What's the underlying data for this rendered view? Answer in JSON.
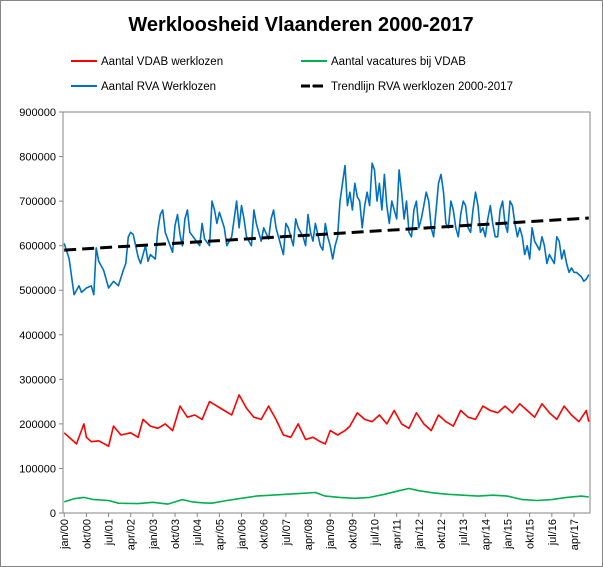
{
  "chart_data": {
    "type": "line",
    "title": "Werkloosheid Vlaanderen 2000-2017",
    "xlabel": "",
    "ylabel": "",
    "ylim": [
      0,
      900000
    ],
    "yticks": [
      0,
      100000,
      200000,
      300000,
      400000,
      500000,
      600000,
      700000,
      800000,
      900000
    ],
    "grid": false,
    "legend_position": "top",
    "x_start": "jan/00",
    "x_end": "dec/17",
    "xtick_labels": [
      "jan/00",
      "okt/00",
      "jul/01",
      "apr/02",
      "jan/03",
      "okt/03",
      "jul/04",
      "apr/05",
      "jan/06",
      "okt/06",
      "jul/07",
      "apr/08",
      "jan/09",
      "okt/09",
      "jul/10",
      "apr/11",
      "jan/12",
      "okt/12",
      "jul/13",
      "apr/14",
      "jan/15",
      "okt/15",
      "jul/16",
      "apr/17"
    ],
    "series": [
      {
        "name": "Aantal VDAB werklozen",
        "color": "#ff0000",
        "style": "solid",
        "anchors": [
          [
            0,
            180000
          ],
          [
            3,
            165000
          ],
          [
            5,
            155000
          ],
          [
            8,
            200000
          ],
          [
            9,
            170000
          ],
          [
            11,
            160000
          ],
          [
            14,
            162000
          ],
          [
            18,
            150000
          ],
          [
            20,
            195000
          ],
          [
            23,
            175000
          ],
          [
            27,
            180000
          ],
          [
            30,
            170000
          ],
          [
            32,
            210000
          ],
          [
            35,
            195000
          ],
          [
            38,
            190000
          ],
          [
            41,
            200000
          ],
          [
            44,
            185000
          ],
          [
            47,
            240000
          ],
          [
            50,
            215000
          ],
          [
            53,
            220000
          ],
          [
            56,
            210000
          ],
          [
            59,
            250000
          ],
          [
            62,
            240000
          ],
          [
            65,
            230000
          ],
          [
            68,
            220000
          ],
          [
            71,
            265000
          ],
          [
            74,
            235000
          ],
          [
            77,
            215000
          ],
          [
            80,
            210000
          ],
          [
            83,
            240000
          ],
          [
            86,
            210000
          ],
          [
            89,
            175000
          ],
          [
            92,
            170000
          ],
          [
            95,
            200000
          ],
          [
            98,
            165000
          ],
          [
            101,
            170000
          ],
          [
            104,
            160000
          ],
          [
            106,
            155000
          ],
          [
            108,
            185000
          ],
          [
            111,
            175000
          ],
          [
            114,
            185000
          ],
          [
            116,
            195000
          ],
          [
            119,
            225000
          ],
          [
            122,
            210000
          ],
          [
            125,
            205000
          ],
          [
            128,
            220000
          ],
          [
            131,
            200000
          ],
          [
            134,
            230000
          ],
          [
            137,
            200000
          ],
          [
            140,
            190000
          ],
          [
            143,
            225000
          ],
          [
            146,
            200000
          ],
          [
            149,
            185000
          ],
          [
            152,
            220000
          ],
          [
            155,
            205000
          ],
          [
            158,
            195000
          ],
          [
            161,
            230000
          ],
          [
            164,
            215000
          ],
          [
            167,
            210000
          ],
          [
            170,
            240000
          ],
          [
            173,
            230000
          ],
          [
            176,
            225000
          ],
          [
            179,
            240000
          ],
          [
            182,
            225000
          ],
          [
            185,
            245000
          ],
          [
            188,
            230000
          ],
          [
            191,
            215000
          ],
          [
            194,
            245000
          ],
          [
            197,
            225000
          ],
          [
            200,
            210000
          ],
          [
            203,
            240000
          ],
          [
            206,
            220000
          ],
          [
            209,
            205000
          ],
          [
            212,
            230000
          ],
          [
            213,
            205000
          ]
        ]
      },
      {
        "name": "Aantal vacatures bij VDAB",
        "color": "#00b050",
        "style": "solid",
        "anchors": [
          [
            0,
            25000
          ],
          [
            4,
            32000
          ],
          [
            8,
            35000
          ],
          [
            12,
            30000
          ],
          [
            18,
            28000
          ],
          [
            22,
            22000
          ],
          [
            30,
            21000
          ],
          [
            36,
            24000
          ],
          [
            42,
            20000
          ],
          [
            48,
            30000
          ],
          [
            52,
            25000
          ],
          [
            56,
            23000
          ],
          [
            60,
            22000
          ],
          [
            66,
            28000
          ],
          [
            72,
            33000
          ],
          [
            78,
            38000
          ],
          [
            84,
            40000
          ],
          [
            90,
            42000
          ],
          [
            96,
            44000
          ],
          [
            102,
            46000
          ],
          [
            106,
            38000
          ],
          [
            112,
            35000
          ],
          [
            118,
            33000
          ],
          [
            124,
            35000
          ],
          [
            130,
            42000
          ],
          [
            136,
            50000
          ],
          [
            140,
            55000
          ],
          [
            144,
            50000
          ],
          [
            150,
            45000
          ],
          [
            156,
            42000
          ],
          [
            162,
            40000
          ],
          [
            168,
            38000
          ],
          [
            174,
            40000
          ],
          [
            180,
            38000
          ],
          [
            186,
            30000
          ],
          [
            192,
            28000
          ],
          [
            198,
            30000
          ],
          [
            204,
            35000
          ],
          [
            210,
            38000
          ],
          [
            213,
            36000
          ]
        ]
      },
      {
        "name": "Aantal RVA Werklozen",
        "color": "#0070c0",
        "style": "solid",
        "anchors": [
          [
            0,
            605000
          ],
          [
            2,
            570000
          ],
          [
            3,
            530000
          ],
          [
            4,
            490000
          ],
          [
            6,
            510000
          ],
          [
            7,
            495000
          ],
          [
            9,
            505000
          ],
          [
            11,
            510000
          ],
          [
            12,
            490000
          ],
          [
            13,
            595000
          ],
          [
            14,
            565000
          ],
          [
            16,
            545000
          ],
          [
            18,
            505000
          ],
          [
            20,
            520000
          ],
          [
            22,
            510000
          ],
          [
            24,
            545000
          ],
          [
            25,
            560000
          ],
          [
            26,
            620000
          ],
          [
            27,
            630000
          ],
          [
            28,
            625000
          ],
          [
            30,
            575000
          ],
          [
            31,
            560000
          ],
          [
            33,
            600000
          ],
          [
            34,
            565000
          ],
          [
            35,
            580000
          ],
          [
            37,
            570000
          ],
          [
            38,
            635000
          ],
          [
            39,
            670000
          ],
          [
            40,
            680000
          ],
          [
            41,
            630000
          ],
          [
            43,
            600000
          ],
          [
            44,
            585000
          ],
          [
            45,
            645000
          ],
          [
            46,
            670000
          ],
          [
            47,
            625000
          ],
          [
            48,
            600000
          ],
          [
            49,
            660000
          ],
          [
            50,
            680000
          ],
          [
            51,
            630000
          ],
          [
            53,
            615000
          ],
          [
            55,
            600000
          ],
          [
            56,
            650000
          ],
          [
            57,
            615000
          ],
          [
            59,
            600000
          ],
          [
            60,
            700000
          ],
          [
            61,
            680000
          ],
          [
            62,
            650000
          ],
          [
            63,
            675000
          ],
          [
            65,
            640000
          ],
          [
            66,
            600000
          ],
          [
            68,
            620000
          ],
          [
            70,
            700000
          ],
          [
            71,
            640000
          ],
          [
            72,
            690000
          ],
          [
            73,
            660000
          ],
          [
            74,
            620000
          ],
          [
            76,
            600000
          ],
          [
            77,
            680000
          ],
          [
            78,
            650000
          ],
          [
            80,
            610000
          ],
          [
            81,
            640000
          ],
          [
            83,
            615000
          ],
          [
            84,
            660000
          ],
          [
            85,
            680000
          ],
          [
            86,
            640000
          ],
          [
            88,
            600000
          ],
          [
            89,
            580000
          ],
          [
            90,
            650000
          ],
          [
            91,
            640000
          ],
          [
            93,
            600000
          ],
          [
            94,
            660000
          ],
          [
            95,
            640000
          ],
          [
            97,
            620000
          ],
          [
            98,
            600000
          ],
          [
            99,
            670000
          ],
          [
            100,
            630000
          ],
          [
            101,
            610000
          ],
          [
            102,
            650000
          ],
          [
            104,
            600000
          ],
          [
            105,
            590000
          ],
          [
            106,
            650000
          ],
          [
            107,
            620000
          ],
          [
            108,
            600000
          ],
          [
            109,
            570000
          ],
          [
            110,
            600000
          ],
          [
            111,
            620000
          ],
          [
            112,
            700000
          ],
          [
            113,
            740000
          ],
          [
            114,
            780000
          ],
          [
            115,
            690000
          ],
          [
            116,
            720000
          ],
          [
            117,
            680000
          ],
          [
            118,
            740000
          ],
          [
            119,
            710000
          ],
          [
            120,
            700000
          ],
          [
            121,
            640000
          ],
          [
            122,
            690000
          ],
          [
            123,
            720000
          ],
          [
            124,
            690000
          ],
          [
            125,
            785000
          ],
          [
            126,
            770000
          ],
          [
            127,
            700000
          ],
          [
            128,
            740000
          ],
          [
            129,
            680000
          ],
          [
            130,
            760000
          ],
          [
            131,
            690000
          ],
          [
            132,
            650000
          ],
          [
            133,
            700000
          ],
          [
            134,
            680000
          ],
          [
            135,
            660000
          ],
          [
            136,
            770000
          ],
          [
            137,
            720000
          ],
          [
            138,
            660000
          ],
          [
            139,
            700000
          ],
          [
            140,
            630000
          ],
          [
            141,
            620000
          ],
          [
            142,
            680000
          ],
          [
            143,
            700000
          ],
          [
            144,
            640000
          ],
          [
            145,
            660000
          ],
          [
            146,
            690000
          ],
          [
            147,
            720000
          ],
          [
            148,
            700000
          ],
          [
            149,
            640000
          ],
          [
            150,
            620000
          ],
          [
            151,
            680000
          ],
          [
            152,
            740000
          ],
          [
            153,
            760000
          ],
          [
            154,
            720000
          ],
          [
            155,
            650000
          ],
          [
            156,
            640000
          ],
          [
            157,
            700000
          ],
          [
            158,
            680000
          ],
          [
            159,
            640000
          ],
          [
            160,
            620000
          ],
          [
            161,
            670000
          ],
          [
            162,
            700000
          ],
          [
            163,
            690000
          ],
          [
            164,
            640000
          ],
          [
            165,
            630000
          ],
          [
            166,
            680000
          ],
          [
            167,
            720000
          ],
          [
            168,
            690000
          ],
          [
            169,
            630000
          ],
          [
            170,
            640000
          ],
          [
            171,
            620000
          ],
          [
            172,
            660000
          ],
          [
            173,
            690000
          ],
          [
            174,
            650000
          ],
          [
            175,
            620000
          ],
          [
            176,
            620000
          ],
          [
            177,
            680000
          ],
          [
            178,
            700000
          ],
          [
            179,
            650000
          ],
          [
            180,
            630000
          ],
          [
            181,
            700000
          ],
          [
            182,
            690000
          ],
          [
            183,
            650000
          ],
          [
            184,
            620000
          ],
          [
            185,
            640000
          ],
          [
            186,
            620000
          ],
          [
            187,
            580000
          ],
          [
            188,
            600000
          ],
          [
            189,
            570000
          ],
          [
            190,
            640000
          ],
          [
            191,
            610000
          ],
          [
            192,
            600000
          ],
          [
            193,
            590000
          ],
          [
            194,
            620000
          ],
          [
            195,
            600000
          ],
          [
            196,
            560000
          ],
          [
            197,
            580000
          ],
          [
            198,
            570000
          ],
          [
            199,
            560000
          ],
          [
            200,
            620000
          ],
          [
            201,
            610000
          ],
          [
            202,
            570000
          ],
          [
            203,
            590000
          ],
          [
            204,
            560000
          ],
          [
            205,
            540000
          ],
          [
            206,
            550000
          ],
          [
            207,
            540000
          ],
          [
            208,
            540000
          ],
          [
            209,
            535000
          ],
          [
            210,
            530000
          ],
          [
            211,
            520000
          ],
          [
            212,
            525000
          ],
          [
            213,
            535000
          ]
        ]
      },
      {
        "name": "Trendlijn RVA werklozen 2000-2017",
        "color": "#000000",
        "style": "dashed",
        "anchors": [
          [
            0,
            590000
          ],
          [
            213,
            662000
          ]
        ]
      }
    ]
  }
}
